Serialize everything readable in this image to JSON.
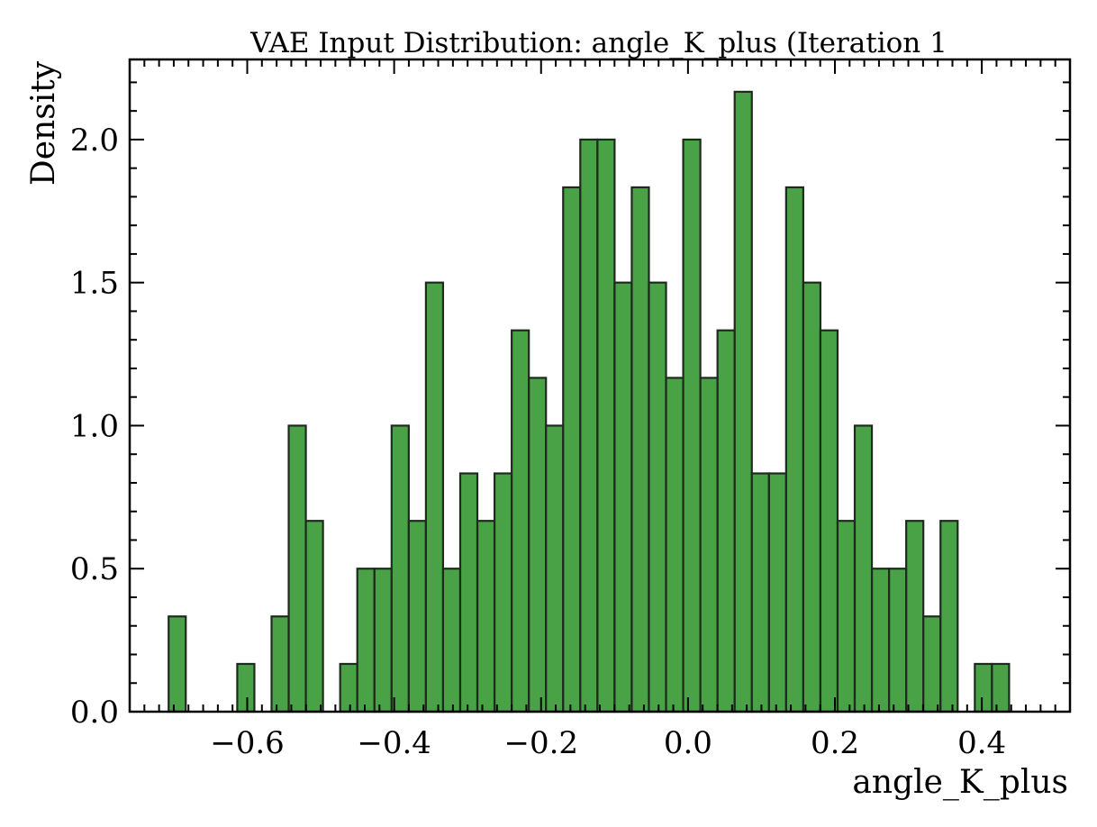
{
  "chart_data": {
    "type": "bar",
    "title": "VAE Input Distribution: angle_K_plus (Iteration 1",
    "xlabel": "angle_K_plus",
    "ylabel": "Density",
    "xlim": [
      -0.76,
      0.52
    ],
    "ylim": [
      0,
      2.28
    ],
    "xticks": [
      -0.6,
      -0.4,
      -0.2,
      0.0,
      0.2,
      0.4
    ],
    "xtick_labels": [
      "−0.6",
      "−0.4",
      "−0.2",
      "0.0",
      "0.2",
      "0.4"
    ],
    "yticks": [
      0.0,
      0.5,
      1.0,
      1.5,
      2.0
    ],
    "ytick_labels": [
      "0.0",
      "0.5",
      "1.0",
      "1.5",
      "2.0"
    ],
    "bin_start": -0.707,
    "bin_width": 0.02335,
    "values": [
      0.333,
      0,
      0,
      0,
      0.167,
      0,
      0.333,
      1.0,
      0.667,
      0,
      0.167,
      0.5,
      0.5,
      1.0,
      0.667,
      1.5,
      0.5,
      0.833,
      0.667,
      0.833,
      1.333,
      1.167,
      1.0,
      1.833,
      2.0,
      2.0,
      1.5,
      1.833,
      1.5,
      1.167,
      2.0,
      1.167,
      1.333,
      2.167,
      0.833,
      0.833,
      1.833,
      1.5,
      1.333,
      0.667,
      1.0,
      0.5,
      0.5,
      0.667,
      0.333,
      0.667,
      0,
      0.167,
      0.167
    ],
    "bar_color": "#3a9a35",
    "edge_color": "#1f2a1f",
    "grid": false,
    "legend": "none"
  }
}
